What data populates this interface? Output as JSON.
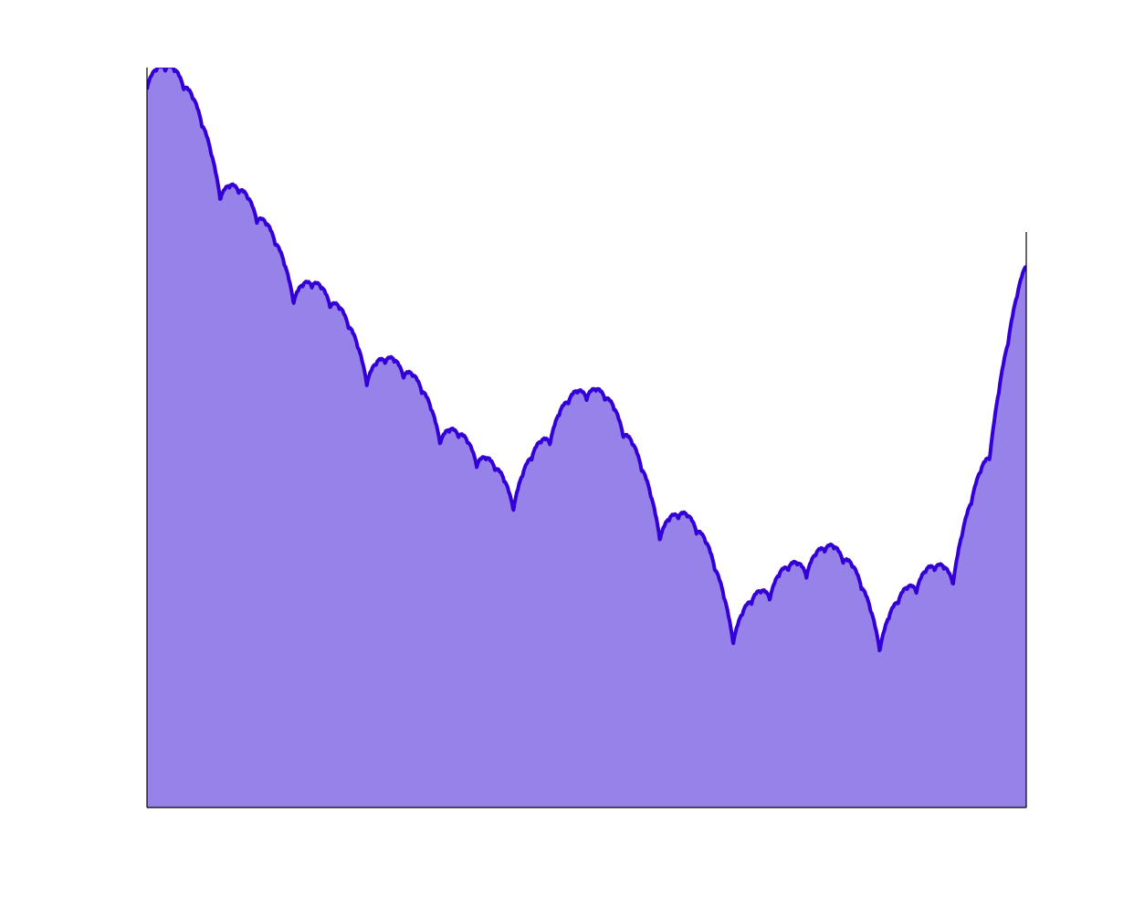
{
  "chart_data": {
    "type": "area",
    "title": "",
    "xlabel": "",
    "ylabel": "",
    "xlim": [
      0,
      1
    ],
    "ylim": [
      0,
      1
    ],
    "grid": false,
    "axes_visible": false,
    "colors": {
      "fill": "#9682e8",
      "line": "#3300d8",
      "axis": "#000000",
      "background": "#ffffff"
    },
    "series": [
      {
        "anchor_x": [
          0,
          0.0417,
          0.0833,
          0.125,
          0.1667,
          0.25,
          0.3333,
          0.375,
          0.4167,
          0.4583,
          0.5,
          0.5417,
          0.5833,
          0.625,
          0.6667,
          0.7083,
          0.75,
          0.7917,
          0.8333,
          0.875,
          0.9167,
          0.9583,
          1
        ],
        "anchor_y": [
          1.02,
          0.97,
          0.87,
          0.79,
          0.73,
          0.62,
          0.54,
          0.46,
          0.45,
          0.49,
          0.6,
          0.5,
          0.41,
          0.37,
          0.27,
          0.28,
          0.36,
          0.33,
          0.26,
          0.29,
          0.35,
          0.47,
          0.78
        ],
        "texture_amplitude": 0.11,
        "points": 1600
      }
    ]
  }
}
